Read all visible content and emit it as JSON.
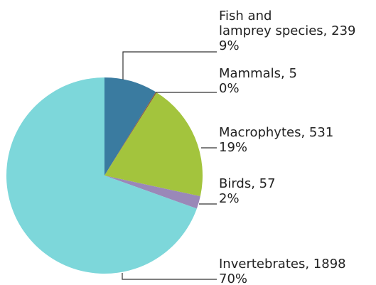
{
  "chart_data": {
    "type": "pie",
    "values": [
      239,
      5,
      531,
      57,
      1898
    ],
    "value_labels": [
      [
        "Fish and",
        "lamprey species, 239"
      ],
      [
        "Mammals, 5"
      ],
      [
        "Macrophytes, 531"
      ],
      [
        "Birds, 57"
      ],
      [
        "Invertebrates, 1898"
      ]
    ],
    "percent_labels": [
      "9%",
      "0%",
      "19%",
      "2%",
      "70%"
    ],
    "colors": [
      "#3a7ba0",
      "#8b5a3c",
      "#a3c43d",
      "#9a88b8",
      "#7dd7da"
    ]
  }
}
